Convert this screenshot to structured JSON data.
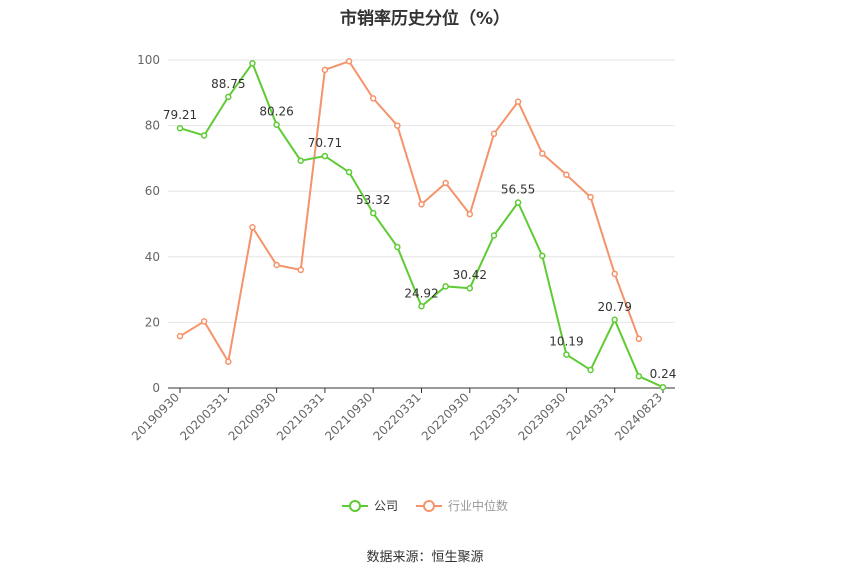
{
  "chart_data": {
    "type": "line",
    "title": "市销率历史分位（%）",
    "xlabel": "",
    "ylabel": "",
    "ylim": [
      0,
      100
    ],
    "yticks": [
      0,
      20,
      40,
      60,
      80,
      100
    ],
    "x_tick_labels": [
      "20190930",
      "20200331",
      "20200930",
      "20210331",
      "20210930",
      "20220331",
      "20220930",
      "20230331",
      "20230930",
      "20240331",
      "20240823"
    ],
    "x_tick_indices": [
      0,
      2,
      4,
      6,
      8,
      10,
      12,
      14,
      16,
      18,
      20
    ],
    "grid": true,
    "legend_position": "bottom",
    "series": [
      {
        "name": "公司",
        "color": "#5ecb34",
        "values": [
          79.21,
          77.0,
          88.75,
          99.0,
          80.26,
          69.3,
          70.71,
          65.8,
          53.32,
          43.0,
          24.92,
          31.0,
          30.42,
          46.5,
          56.55,
          40.3,
          10.19,
          5.5,
          20.79,
          3.6,
          0.24
        ],
        "labeled_indices": [
          0,
          2,
          4,
          6,
          8,
          10,
          12,
          14,
          16,
          18,
          20
        ]
      },
      {
        "name": "行业中位数",
        "color": "#f5936a",
        "values": [
          15.8,
          20.3,
          8.0,
          49.0,
          37.5,
          36.0,
          97.0,
          99.6,
          88.3,
          80.0,
          56.0,
          62.5,
          53.0,
          77.5,
          87.3,
          71.5,
          65.0,
          58.2,
          34.8,
          15.0,
          null
        ]
      }
    ]
  },
  "source_text": "数据来源：恒生聚源"
}
